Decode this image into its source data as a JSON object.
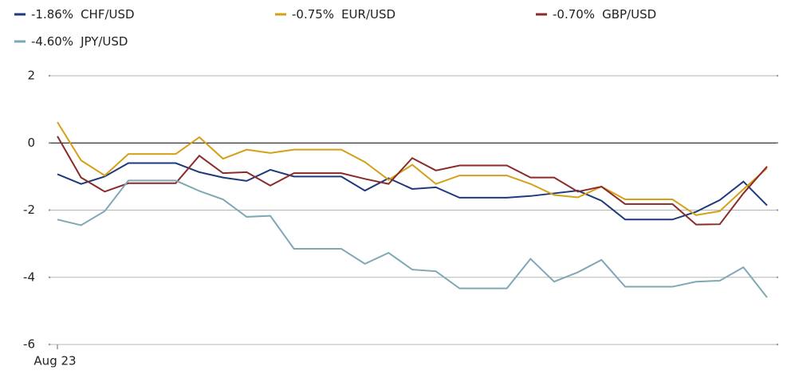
{
  "chart_data": {
    "type": "line",
    "categories": [
      "Aug 23",
      null,
      null,
      null,
      null,
      null,
      null,
      null,
      null,
      null,
      null,
      null,
      null,
      null,
      null,
      null,
      null,
      null,
      null,
      null,
      null,
      null,
      null,
      null,
      null,
      null,
      null,
      null,
      null,
      null,
      null
    ],
    "series": [
      {
        "name": "CHF/USD",
        "change": "-1.86%",
        "color": "#1f3a7a",
        "values": [
          -0.93,
          -1.22,
          -1.0,
          -0.6,
          -0.6,
          -0.6,
          -0.87,
          -1.03,
          -1.13,
          -0.8,
          -1.0,
          -1.0,
          -1.0,
          -1.42,
          -1.05,
          -1.37,
          -1.32,
          -1.63,
          -1.63,
          -1.63,
          -1.58,
          -1.5,
          -1.42,
          -1.72,
          -2.28,
          -2.28,
          -2.28,
          -2.05,
          -1.7,
          -1.15,
          -1.86
        ]
      },
      {
        "name": "EUR/USD",
        "change": "-0.75%",
        "color": "#d4a017",
        "values": [
          0.62,
          -0.52,
          -0.97,
          -0.33,
          -0.33,
          -0.33,
          0.17,
          -0.47,
          -0.2,
          -0.3,
          -0.2,
          -0.2,
          -0.2,
          -0.57,
          -1.1,
          -0.65,
          -1.22,
          -0.97,
          -0.97,
          -0.97,
          -1.22,
          -1.55,
          -1.62,
          -1.3,
          -1.68,
          -1.68,
          -1.68,
          -2.15,
          -2.03,
          -1.38,
          -0.75
        ]
      },
      {
        "name": "GBP/USD",
        "change": "-0.70%",
        "color": "#8b2a2a",
        "values": [
          0.2,
          -1.03,
          -1.45,
          -1.2,
          -1.2,
          -1.2,
          -0.38,
          -0.9,
          -0.87,
          -1.27,
          -0.9,
          -0.9,
          -0.9,
          -1.07,
          -1.22,
          -0.45,
          -0.82,
          -0.67,
          -0.67,
          -0.67,
          -1.03,
          -1.03,
          -1.45,
          -1.3,
          -1.82,
          -1.82,
          -1.82,
          -2.43,
          -2.42,
          -1.5,
          -0.7
        ]
      },
      {
        "name": "JPY/USD",
        "change": "-4.60%",
        "color": "#7fa8b5",
        "values": [
          -2.28,
          -2.45,
          -2.03,
          -1.12,
          -1.12,
          -1.12,
          -1.43,
          -1.68,
          -2.2,
          -2.17,
          -3.15,
          -3.15,
          -3.15,
          -3.6,
          -3.27,
          -3.77,
          -3.82,
          -4.33,
          -4.33,
          -4.33,
          -3.45,
          -4.13,
          -3.85,
          -3.48,
          -4.28,
          -4.28,
          -4.28,
          -4.13,
          -4.1,
          -3.7,
          -4.6
        ]
      }
    ],
    "ylim": [
      -6,
      2
    ],
    "yticks": [
      -6,
      -4,
      -2,
      0,
      2
    ],
    "grid": true
  }
}
